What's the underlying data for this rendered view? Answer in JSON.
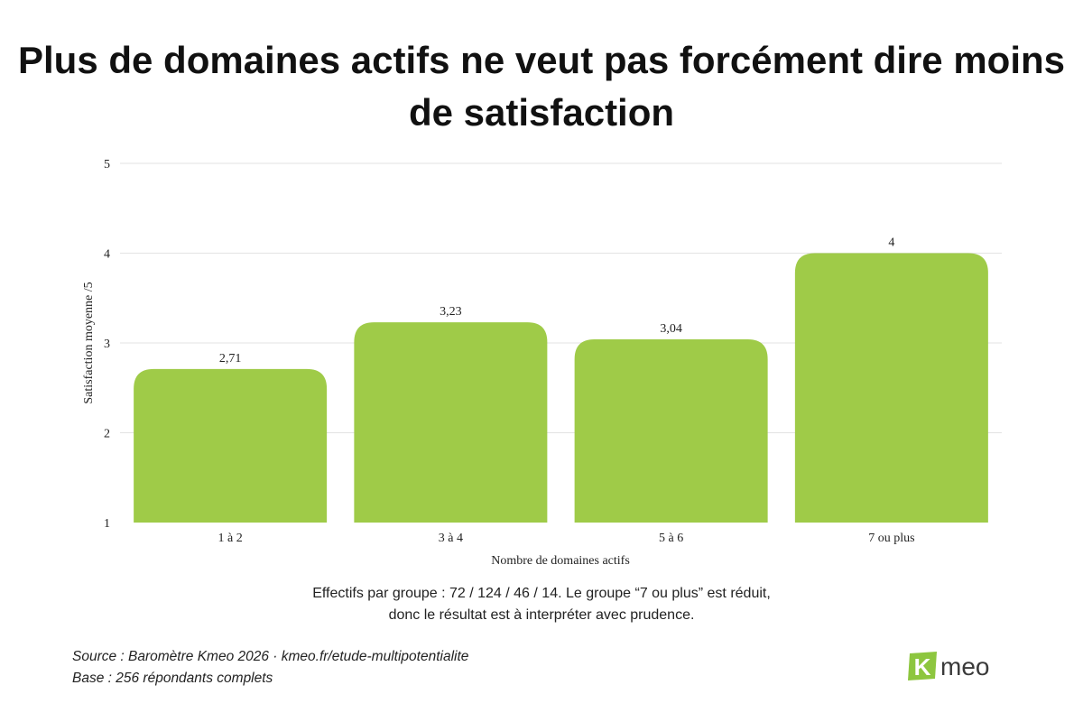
{
  "chart_data": {
    "type": "bar",
    "title": "Plus de domaines actifs ne veut pas forcément dire moins de satisfaction",
    "xlabel": "Nombre de domaines actifs",
    "ylabel": "Satisfaction moyenne /5",
    "categories": [
      "1 à 2",
      "3 à 4",
      "5 à 6",
      "7 ou plus"
    ],
    "values": [
      2.71,
      3.23,
      3.04,
      4
    ],
    "data_labels": [
      "2,71",
      "3,23",
      "3,04",
      "4"
    ],
    "ylim": [
      1,
      5
    ],
    "yticks": [
      1,
      2,
      3,
      4,
      5
    ],
    "grid": true,
    "legend": "none",
    "bar_color": "#9fcb48",
    "grid_color": "#e3e3e3"
  },
  "note": {
    "line1": "Effectifs par groupe : 72 / 124 / 46 / 14. Le groupe “7 ou plus” est réduit,",
    "line2": "donc le résultat est à interpréter avec prudence."
  },
  "source": {
    "line1": "Source : Baromètre Kmeo 2026 · kmeo.fr/etude-multipotentialite",
    "line2": "Base : 256 répondants complets"
  },
  "logo": {
    "mark": "K",
    "text": "meo",
    "mark_color": "#8dc63f",
    "text_color": "#3a3a3a"
  }
}
